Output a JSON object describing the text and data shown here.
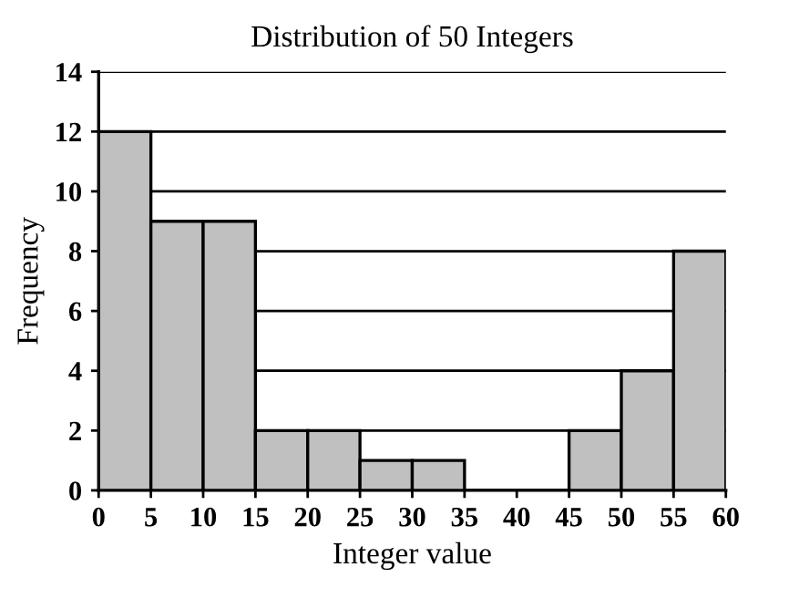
{
  "chart_data": {
    "type": "histogram",
    "title": "Distribution of 50 Integers",
    "xlabel": "Integer value",
    "ylabel": "Frequency",
    "bins": [
      0,
      5,
      10,
      15,
      20,
      25,
      30,
      35,
      40,
      45,
      50,
      55,
      60
    ],
    "values": [
      12,
      9,
      9,
      2,
      2,
      1,
      1,
      0,
      0,
      2,
      4,
      8
    ],
    "color": "#c0c0c0",
    "xlim": [
      0,
      60
    ],
    "xticks": [
      0,
      5,
      10,
      15,
      20,
      25,
      30,
      35,
      40,
      45,
      50,
      55,
      60
    ],
    "ylim": [
      0,
      14
    ],
    "yticks": [
      0,
      2,
      4,
      6,
      8,
      10,
      12,
      14
    ],
    "grid": "y",
    "legend": false
  }
}
